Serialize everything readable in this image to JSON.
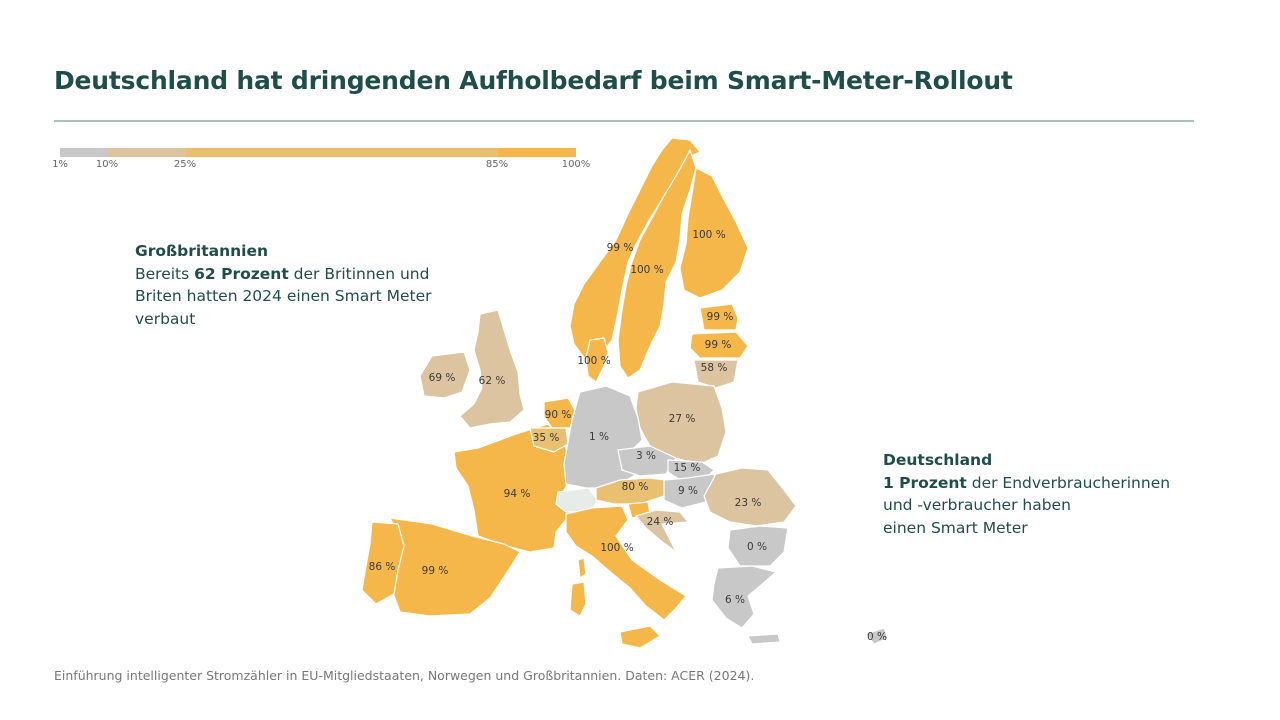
{
  "title": "Deutschland hat dringenden Aufholbedarf beim Smart-Meter-Rollout",
  "legend": {
    "ticks": [
      "1%",
      "10%",
      "25%",
      "85%",
      "100%"
    ],
    "colors": [
      "#c8c8c8",
      "#dcc4a0",
      "#e9bf70",
      "#f6b74a"
    ]
  },
  "callout_uk": {
    "heading": "Großbritannien",
    "line1_pre": "Bereits ",
    "line1_bold": "62 Prozent",
    "line1_post": " der Britinnen und",
    "line2": "Briten hatten 2024 einen Smart Meter",
    "line3": "verbaut"
  },
  "callout_de": {
    "heading": "Deutschland",
    "line1_bold": "1 Prozent",
    "line1_post": " der Endverbraucherinnen",
    "line2": "und -verbraucher haben",
    "line3": "einen Smart Meter"
  },
  "chart_data": {
    "type": "choropleth",
    "title": "Einführung intelligenter Stromzähler",
    "countries": [
      {
        "name": "Finnland",
        "label": "100 %",
        "value": 100
      },
      {
        "name": "Schweden",
        "label": "100 %",
        "value": 100
      },
      {
        "name": "Norwegen",
        "label": "99 %",
        "value": 99
      },
      {
        "name": "Estland",
        "label": "99 %",
        "value": 99
      },
      {
        "name": "Lettland",
        "label": "99 %",
        "value": 99
      },
      {
        "name": "Litauen",
        "label": "58 %",
        "value": 58
      },
      {
        "name": "Dänemark",
        "label": "100 %",
        "value": 100
      },
      {
        "name": "Irland",
        "label": "69 %",
        "value": 69
      },
      {
        "name": "Großbritannien",
        "label": "62 %",
        "value": 62
      },
      {
        "name": "Niederlande",
        "label": "90 %",
        "value": 90
      },
      {
        "name": "Belgien",
        "label": "35 %",
        "value": 35
      },
      {
        "name": "Deutschland",
        "label": "1 %",
        "value": 1
      },
      {
        "name": "Polen",
        "label": "27 %",
        "value": 27
      },
      {
        "name": "Tschechien",
        "label": "3 %",
        "value": 3
      },
      {
        "name": "Slowakei",
        "label": "15 %",
        "value": 15
      },
      {
        "name": "Österreich",
        "label": "80 %",
        "value": 80
      },
      {
        "name": "Ungarn",
        "label": "9 %",
        "value": 9
      },
      {
        "name": "Frankreich",
        "label": "94 %",
        "value": 94
      },
      {
        "name": "Rumänien",
        "label": "23 %",
        "value": 23
      },
      {
        "name": "Kroatien",
        "label": "24 %",
        "value": 24
      },
      {
        "name": "Bulgarien",
        "label": "0 %",
        "value": 0
      },
      {
        "name": "Italien",
        "label": "100 %",
        "value": 100
      },
      {
        "name": "Spanien",
        "label": "99 %",
        "value": 99
      },
      {
        "name": "Portugal",
        "label": "86 %",
        "value": 86
      },
      {
        "name": "Griechenland",
        "label": "6 %",
        "value": 6
      },
      {
        "name": "Zypern",
        "label": "0 %",
        "value": 0
      }
    ]
  },
  "footer": "Einführung intelligenter Stromzähler in EU-Mitgliedstaaten, Norwegen und Großbritannien. Daten: ACER (2024)."
}
